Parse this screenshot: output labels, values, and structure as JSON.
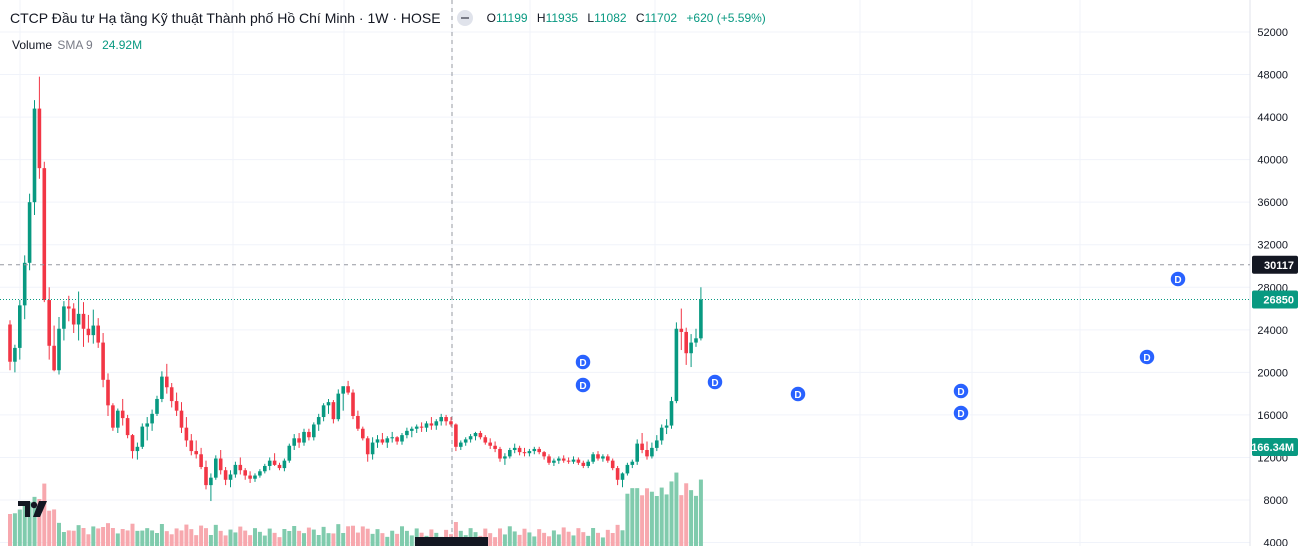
{
  "header": {
    "title": "CTCP Đầu tư Hạ tầng Kỹ thuật Thành phố Hồ Chí Minh · 1W · HOSE",
    "ohlc": {
      "o_label": "O",
      "o": "11199",
      "h_label": "H",
      "h": "11935",
      "l_label": "L",
      "l": "11082",
      "c_label": "C",
      "c": "11702",
      "change": "+620 (+5.59%)"
    }
  },
  "volume_legend": {
    "label": "Volume",
    "sma": "SMA 9",
    "value": "24.92M"
  },
  "price_badges": {
    "crosshair": "30117",
    "last": "26850",
    "volume": "166.34M"
  },
  "dividend_marker": "D",
  "logo_icon": "tradingview-logo-icon",
  "colors": {
    "up": "#089981",
    "down": "#f23645",
    "vol_up": "#80cbad",
    "vol_down": "#f7a8ae"
  },
  "chart_data": {
    "type": "candlestick",
    "interval": "1W",
    "yaxis_ticks": [
      4000,
      8000,
      12000,
      16000,
      20000,
      24000,
      28000,
      32000,
      36000,
      40000,
      44000,
      48000,
      52000
    ],
    "ylim": [
      4000,
      52000
    ],
    "last_price": 26850,
    "crosshair_price": 30117,
    "grid": true,
    "candles": [
      [
        24500,
        24900,
        20200,
        21000
      ],
      [
        21000,
        22600,
        20000,
        22300
      ],
      [
        22300,
        26800,
        21200,
        26300
      ],
      [
        26300,
        31000,
        25000,
        30300
      ],
      [
        30300,
        36800,
        29600,
        36000
      ],
      [
        36000,
        45600,
        34800,
        44800
      ],
      [
        44800,
        47800,
        38200,
        39200
      ],
      [
        39200,
        39800,
        26600,
        26800
      ],
      [
        26800,
        28000,
        21200,
        22500
      ],
      [
        22500,
        24400,
        20100,
        20200
      ],
      [
        20200,
        25200,
        19800,
        24100
      ],
      [
        24100,
        26700,
        23000,
        26200
      ],
      [
        26200,
        27200,
        24800,
        26000
      ],
      [
        26000,
        26500,
        23700,
        24500
      ],
      [
        24500,
        27600,
        23000,
        25500
      ],
      [
        25500,
        26600,
        22400,
        24100
      ],
      [
        24100,
        25400,
        22800,
        23500
      ],
      [
        23500,
        25900,
        22700,
        24400
      ],
      [
        24400,
        25100,
        22300,
        22800
      ],
      [
        22800,
        23700,
        18600,
        19300
      ],
      [
        19300,
        19900,
        15900,
        16900
      ],
      [
        16900,
        17100,
        14500,
        14800
      ],
      [
        14800,
        16600,
        14300,
        16400
      ],
      [
        16400,
        17500,
        15000,
        15700
      ],
      [
        15700,
        16000,
        13800,
        14100
      ],
      [
        14100,
        14200,
        11900,
        12600
      ],
      [
        12600,
        13400,
        11800,
        13000
      ],
      [
        13000,
        15200,
        12800,
        14900
      ],
      [
        14900,
        15800,
        13600,
        15200
      ],
      [
        15200,
        16500,
        14500,
        16100
      ],
      [
        16100,
        17800,
        15900,
        17500
      ],
      [
        17500,
        20100,
        17200,
        19600
      ],
      [
        19600,
        20800,
        18000,
        18600
      ],
      [
        18600,
        19000,
        16700,
        17300
      ],
      [
        17300,
        18100,
        15900,
        16400
      ],
      [
        16400,
        17200,
        14300,
        14800
      ],
      [
        14800,
        15800,
        13000,
        13600
      ],
      [
        13600,
        14200,
        12200,
        12600
      ],
      [
        12600,
        13600,
        11900,
        12300
      ],
      [
        12300,
        12900,
        10900,
        11100
      ],
      [
        11100,
        11700,
        9000,
        9400
      ],
      [
        9400,
        10500,
        7900,
        10100
      ],
      [
        10100,
        12200,
        9900,
        11900
      ],
      [
        11900,
        12700,
        10400,
        10800
      ],
      [
        10800,
        11100,
        9400,
        9900
      ],
      [
        9900,
        10800,
        9200,
        10400
      ],
      [
        10400,
        11600,
        10100,
        11300
      ],
      [
        11300,
        12000,
        10400,
        10800
      ],
      [
        10800,
        11000,
        9900,
        10300
      ],
      [
        10300,
        10700,
        9600,
        10000
      ],
      [
        10000,
        10500,
        9700,
        10300
      ],
      [
        10300,
        10900,
        10100,
        10700
      ],
      [
        10700,
        11400,
        10500,
        11200
      ],
      [
        11200,
        12000,
        10800,
        11700
      ],
      [
        11700,
        12400,
        11200,
        11300
      ],
      [
        11300,
        11500,
        10800,
        11000
      ],
      [
        11000,
        11900,
        10700,
        11700
      ],
      [
        11700,
        13300,
        11500,
        13100
      ],
      [
        13100,
        14200,
        12700,
        13800
      ],
      [
        13800,
        14300,
        12900,
        13400
      ],
      [
        13400,
        14700,
        13100,
        14400
      ],
      [
        14400,
        14700,
        13600,
        13900
      ],
      [
        13900,
        15300,
        13600,
        15100
      ],
      [
        15100,
        16100,
        14500,
        15800
      ],
      [
        15800,
        17100,
        15400,
        16900
      ],
      [
        16900,
        17500,
        16100,
        17200
      ],
      [
        17200,
        17400,
        15200,
        15600
      ],
      [
        15600,
        18400,
        15400,
        18000
      ],
      [
        18000,
        18500,
        16400,
        18700
      ],
      [
        18700,
        19200,
        17900,
        18100
      ],
      [
        18100,
        18400,
        15600,
        15900
      ],
      [
        15900,
        16400,
        14500,
        14700
      ],
      [
        14700,
        14900,
        13600,
        13800
      ],
      [
        13800,
        14000,
        11600,
        12300
      ],
      [
        12300,
        13900,
        11800,
        13400
      ],
      [
        13400,
        14100,
        12900,
        13700
      ],
      [
        13700,
        14300,
        13200,
        13400
      ],
      [
        13400,
        14000,
        12900,
        13800
      ],
      [
        13800,
        14400,
        13400,
        13900
      ],
      [
        13900,
        14000,
        13200,
        13500
      ],
      [
        13500,
        14300,
        13200,
        14100
      ],
      [
        14100,
        14800,
        13800,
        14500
      ],
      [
        14500,
        14900,
        13900,
        14700
      ],
      [
        14700,
        15100,
        14300,
        14900
      ],
      [
        14900,
        15300,
        14400,
        14800
      ],
      [
        14800,
        15400,
        14400,
        15200
      ],
      [
        15200,
        15800,
        14600,
        15000
      ],
      [
        15000,
        15600,
        14600,
        15400
      ],
      [
        15400,
        16100,
        15000,
        15800
      ],
      [
        15800,
        16000,
        15000,
        15400
      ],
      [
        15400,
        15800,
        14900,
        15100
      ],
      [
        15100,
        15200,
        12600,
        13000
      ],
      [
        13000,
        13600,
        12700,
        13400
      ],
      [
        13400,
        13900,
        13100,
        13700
      ],
      [
        13700,
        14200,
        13400,
        14000
      ],
      [
        14000,
        14400,
        13600,
        14300
      ],
      [
        14300,
        14500,
        13700,
        13900
      ],
      [
        13900,
        14100,
        13200,
        13400
      ],
      [
        13400,
        13800,
        12800,
        13100
      ],
      [
        13100,
        13500,
        12500,
        12800
      ],
      [
        12800,
        13000,
        11600,
        11900
      ],
      [
        11900,
        12400,
        11300,
        12100
      ],
      [
        12100,
        12900,
        11900,
        12700
      ],
      [
        12700,
        13300,
        12400,
        12900
      ],
      [
        12900,
        13100,
        12200,
        12500
      ],
      [
        12500,
        12900,
        12100,
        12400
      ],
      [
        12400,
        12800,
        12100,
        12600
      ],
      [
        12600,
        13000,
        12300,
        12800
      ],
      [
        12800,
        13000,
        12300,
        12500
      ],
      [
        12500,
        12600,
        11800,
        12100
      ],
      [
        12100,
        12300,
        11300,
        11500
      ],
      [
        11500,
        11900,
        11200,
        11700
      ],
      [
        11700,
        12100,
        11400,
        11900
      ],
      [
        11900,
        12200,
        11500,
        11700
      ],
      [
        11700,
        12000,
        11400,
        11600
      ],
      [
        11600,
        12100,
        11400,
        11800
      ],
      [
        11800,
        12000,
        11300,
        11500
      ],
      [
        11500,
        11700,
        11000,
        11200
      ],
      [
        11200,
        11800,
        11000,
        11600
      ],
      [
        11600,
        12500,
        11400,
        12300
      ],
      [
        12300,
        12600,
        11700,
        11900
      ],
      [
        11900,
        12300,
        11600,
        12100
      ],
      [
        12100,
        12300,
        11500,
        11700
      ],
      [
        11700,
        11900,
        10800,
        11000
      ],
      [
        11000,
        11200,
        9400,
        9900
      ],
      [
        9900,
        10600,
        9200,
        10500
      ],
      [
        10500,
        11500,
        10300,
        11300
      ],
      [
        11300,
        11800,
        11000,
        11600
      ],
      [
        11600,
        13700,
        11300,
        13300
      ],
      [
        13300,
        14300,
        12400,
        12700
      ],
      [
        12700,
        13500,
        11800,
        12100
      ],
      [
        12100,
        13400,
        11900,
        12900
      ],
      [
        12900,
        14100,
        12600,
        13600
      ],
      [
        13600,
        15100,
        13200,
        14800
      ],
      [
        14800,
        15600,
        14200,
        15000
      ],
      [
        15000,
        17700,
        14700,
        17300
      ],
      [
        17300,
        24700,
        17100,
        24100
      ],
      [
        24100,
        26000,
        22100,
        23800
      ],
      [
        23800,
        24200,
        20700,
        21800
      ],
      [
        21800,
        23600,
        20500,
        22800
      ],
      [
        22800,
        24100,
        22400,
        23200
      ],
      [
        23200,
        28000,
        23000,
        26850
      ]
    ],
    "volume_sma_label": "SMA 9",
    "dividend_events_count": 9
  }
}
